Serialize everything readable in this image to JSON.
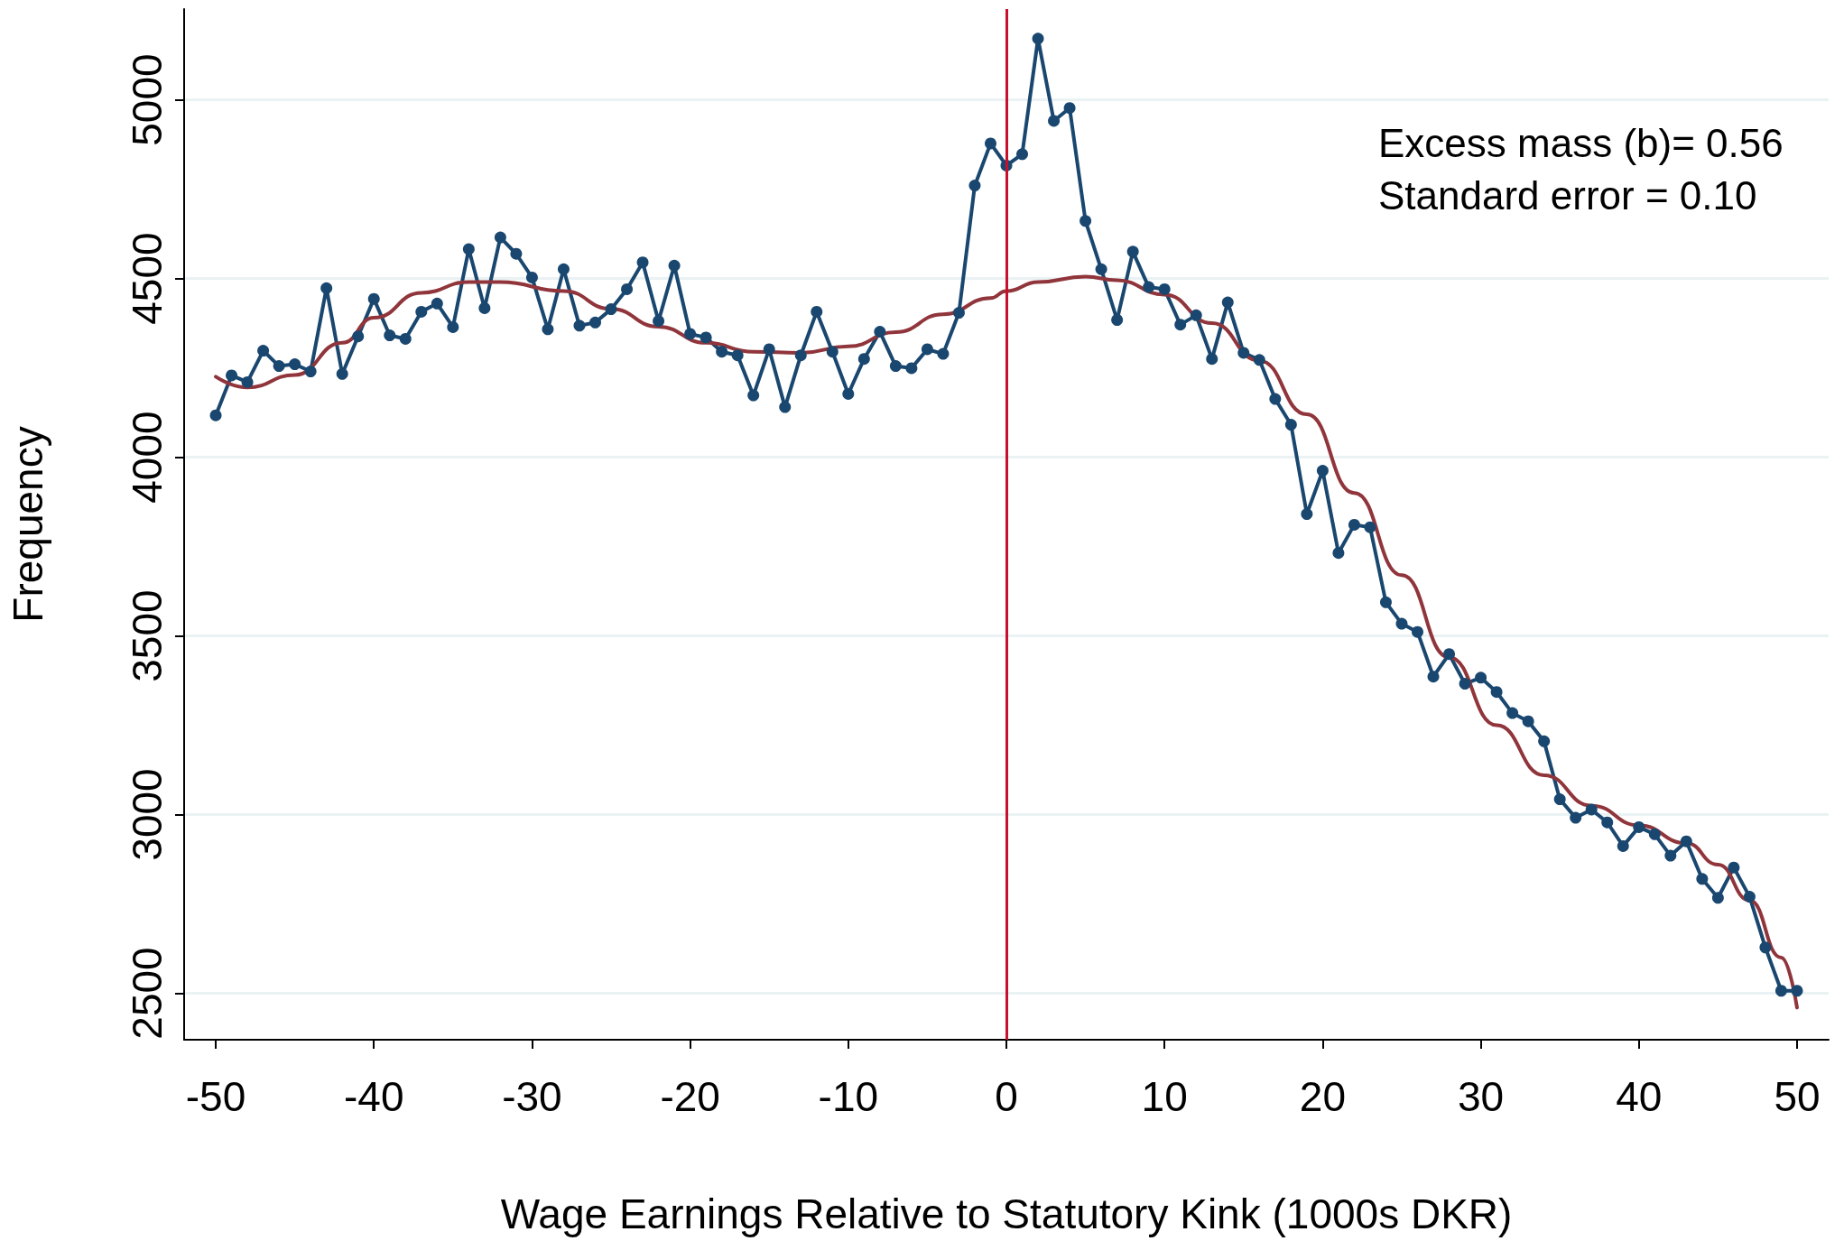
{
  "chart_data": {
    "type": "line",
    "xlabel": "Wage Earnings Relative to Statutory Kink (1000s DKR)",
    "ylabel": "Frequency",
    "x": [
      -50,
      -49,
      -48,
      -47,
      -46,
      -45,
      -44,
      -43,
      -42,
      -41,
      -40,
      -39,
      -38,
      -37,
      -36,
      -35,
      -34,
      -33,
      -32,
      -31,
      -30,
      -29,
      -28,
      -27,
      -26,
      -25,
      -24,
      -23,
      -22,
      -21,
      -20,
      -19,
      -18,
      -17,
      -16,
      -15,
      -14,
      -13,
      -12,
      -11,
      -10,
      -9,
      -8,
      -7,
      -6,
      -5,
      -4,
      -3,
      -2,
      -1,
      0,
      1,
      2,
      3,
      4,
      5,
      6,
      7,
      8,
      9,
      10,
      11,
      12,
      13,
      14,
      15,
      16,
      17,
      18,
      19,
      20,
      21,
      22,
      23,
      24,
      25,
      26,
      27,
      28,
      29,
      30,
      31,
      32,
      33,
      34,
      35,
      36,
      37,
      38,
      39,
      40,
      41,
      42,
      43,
      44,
      45,
      46,
      47,
      48,
      49,
      50
    ],
    "series": [
      {
        "color": "#1a476f",
        "marker": "circle",
        "values": [
          4117,
          4229,
          4210,
          4298,
          4255,
          4260,
          4240,
          4473,
          4233,
          4338,
          4443,
          4341,
          4331,
          4407,
          4430,
          4364,
          4582,
          4417,
          4615,
          4569,
          4503,
          4358,
          4526,
          4368,
          4377,
          4414,
          4470,
          4545,
          4381,
          4536,
          4345,
          4335,
          4295,
          4285,
          4173,
          4302,
          4140,
          4285,
          4407,
          4295,
          4177,
          4275,
          4351,
          4255,
          4249,
          4302,
          4289,
          4404,
          4760,
          4878,
          4816,
          4848,
          5171,
          4941,
          4977,
          4661,
          4526,
          4384,
          4575,
          4476,
          4470,
          4371,
          4397,
          4275,
          4433,
          4292,
          4272,
          4163,
          4091,
          3841,
          3962,
          3732,
          3811,
          3804,
          3594,
          3534,
          3511,
          3386,
          3449,
          3366,
          3383,
          3343,
          3284,
          3261,
          3205,
          3043,
          2991,
          3014,
          2978,
          2912,
          2965,
          2945,
          2885,
          2925,
          2820,
          2767,
          2852,
          2770,
          2628,
          2507,
          2507
        ]
      },
      {
        "color": "#90353b",
        "marker": "none",
        "x": [
          -50,
          -48,
          -45,
          -42,
          -40,
          -37,
          -34,
          -32,
          -28,
          -25,
          -22,
          -19,
          -16,
          -13,
          -10,
          -7,
          -4,
          -1,
          0,
          2,
          5,
          7,
          10,
          13,
          16,
          19,
          22,
          25,
          28,
          31,
          34,
          37,
          40,
          43,
          45,
          47,
          49,
          50
        ],
        "values": [
          4225,
          4195,
          4230,
          4320,
          4390,
          4460,
          4490,
          4490,
          4465,
          4415,
          4365,
          4320,
          4295,
          4292,
          4310,
          4350,
          4400,
          4445,
          4465,
          4490,
          4505,
          4495,
          4455,
          4375,
          4270,
          4120,
          3900,
          3670,
          3440,
          3250,
          3110,
          3025,
          2970,
          2920,
          2860,
          2760,
          2600,
          2460
        ]
      }
    ],
    "xlim": [
      -52,
      52
    ],
    "xticks": [
      -50,
      -40,
      -30,
      -20,
      -10,
      0,
      10,
      20,
      30,
      40,
      50
    ],
    "ylim": [
      2370,
      5254
    ],
    "yticks": [
      2500,
      3000,
      3500,
      4000,
      4500,
      5000
    ],
    "grid": "y",
    "line_style": "solid",
    "ref_lines": [
      {
        "axis": "x",
        "value": 0,
        "color": "#c8102e"
      }
    ],
    "annotations": [
      "Excess mass (b)= 0.56",
      "Standard error = 0.10"
    ]
  }
}
